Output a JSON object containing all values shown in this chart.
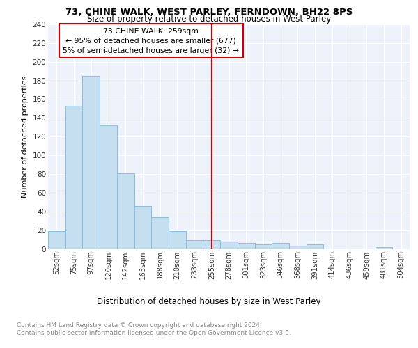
{
  "title1": "73, CHINE WALK, WEST PARLEY, FERNDOWN, BH22 8PS",
  "title2": "Size of property relative to detached houses in West Parley",
  "xlabel": "Distribution of detached houses by size in West Parley",
  "ylabel": "Number of detached properties",
  "categories": [
    "52sqm",
    "75sqm",
    "97sqm",
    "120sqm",
    "142sqm",
    "165sqm",
    "188sqm",
    "210sqm",
    "233sqm",
    "255sqm",
    "278sqm",
    "301sqm",
    "323sqm",
    "346sqm",
    "368sqm",
    "391sqm",
    "414sqm",
    "436sqm",
    "459sqm",
    "481sqm",
    "504sqm"
  ],
  "values": [
    19,
    153,
    185,
    132,
    81,
    46,
    34,
    19,
    9,
    9,
    8,
    6,
    5,
    6,
    3,
    5,
    0,
    0,
    0,
    2,
    0
  ],
  "bar_color": "#c5dff0",
  "bar_edge_color": "#8bbddb",
  "vline_x": 9.0,
  "vline_label": "73 CHINE WALK: 259sqm",
  "annotation_line1": "← 95% of detached houses are smaller (677)",
  "annotation_line2": "5% of semi-detached houses are larger (32) →",
  "annotation_box_color": "#cc0000",
  "ylim": [
    0,
    240
  ],
  "yticks": [
    0,
    20,
    40,
    60,
    80,
    100,
    120,
    140,
    160,
    180,
    200,
    220,
    240
  ],
  "footnote1": "Contains HM Land Registry data © Crown copyright and database right 2024.",
  "footnote2": "Contains public sector information licensed under the Open Government Licence v3.0.",
  "bg_color": "#edf2fb",
  "grid_color": "#ffffff"
}
